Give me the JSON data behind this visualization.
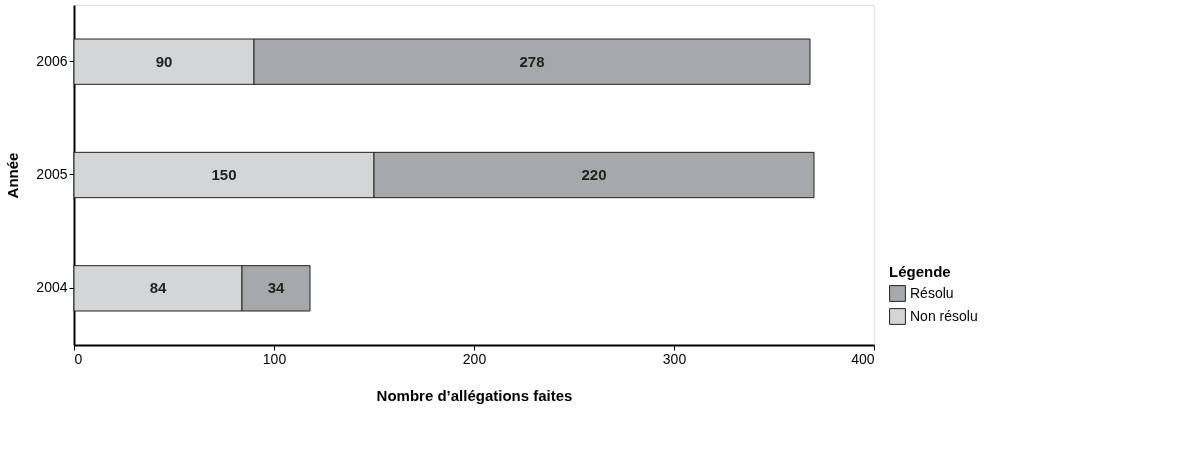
{
  "chart_data": {
    "type": "bar",
    "orientation": "horizontal",
    "stacked": true,
    "categories": [
      "2006",
      "2005",
      "2004"
    ],
    "series": [
      {
        "name": "Non résolu",
        "color": "#d4d5d7",
        "values": [
          90,
          150,
          84
        ]
      },
      {
        "name": "Résolu",
        "color": "#a7a8ab",
        "values": [
          278,
          220,
          34
        ]
      }
    ],
    "xlim": [
      0,
      400
    ],
    "xticks": [
      0,
      100,
      200,
      300,
      400
    ],
    "xlabel": "Nombre d’allégations faites",
    "ylabel": "Année",
    "legend_title": "Légende",
    "legend": "bottom right",
    "data_labels": true,
    "grid": false
  }
}
